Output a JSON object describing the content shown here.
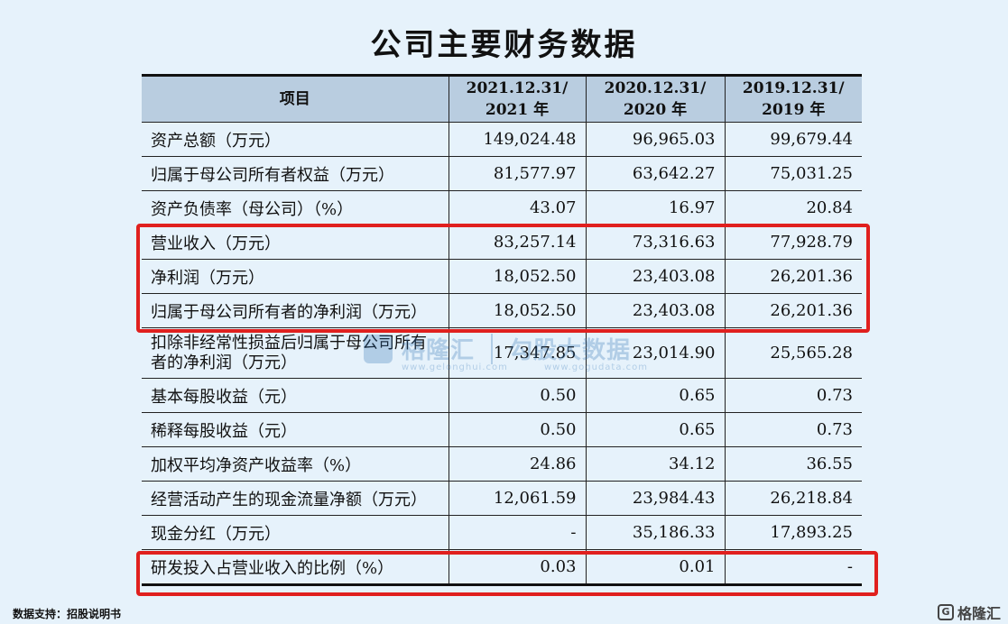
{
  "title": "公司主要财务数据",
  "table": {
    "headers": [
      "项目",
      "2021.12.31/\n2021 年",
      "2020.12.31/\n2020 年",
      "2019.12.31/\n2019 年"
    ],
    "rows": [
      {
        "label": "资产总额（万元）",
        "values": [
          "149,024.48",
          "96,965.03",
          "99,679.44"
        ]
      },
      {
        "label": "归属于母公司所有者权益（万元）",
        "values": [
          "81,577.97",
          "63,642.27",
          "75,031.25"
        ]
      },
      {
        "label": "资产负债率（母公司）（%）",
        "values": [
          "43.07",
          "16.97",
          "20.84"
        ]
      },
      {
        "label": "营业收入（万元）",
        "values": [
          "83,257.14",
          "73,316.63",
          "77,928.79"
        ]
      },
      {
        "label": "净利润（万元）",
        "values": [
          "18,052.50",
          "23,403.08",
          "26,201.36"
        ]
      },
      {
        "label": "归属于母公司所有者的净利润（万元）",
        "values": [
          "18,052.50",
          "23,403.08",
          "26,201.36"
        ]
      },
      {
        "label": "扣除非经常性损益后归属于母公司所有者的净利润（万元）",
        "values": [
          "17,347.85",
          "23,014.90",
          "25,565.28"
        ]
      },
      {
        "label": "基本每股收益（元）",
        "values": [
          "0.50",
          "0.65",
          "0.73"
        ]
      },
      {
        "label": "稀释每股收益（元）",
        "values": [
          "0.50",
          "0.65",
          "0.73"
        ]
      },
      {
        "label": "加权平均净资产收益率（%）",
        "values": [
          "24.86",
          "34.12",
          "36.55"
        ]
      },
      {
        "label": "经营活动产生的现金流量净额（万元）",
        "values": [
          "12,061.59",
          "23,984.43",
          "26,218.84"
        ]
      },
      {
        "label": "现金分红（万元）",
        "values": [
          "-",
          "35,186.33",
          "17,893.25"
        ]
      },
      {
        "label": "研发投入占营业收入的比例（%）",
        "values": [
          "0.03",
          "0.01",
          "-"
        ]
      }
    ]
  },
  "source": "数据支持：招股说明书",
  "watermark": {
    "brand": "格隆汇",
    "brand_url": "www.gelonghui.com",
    "data_brand": "勾股大数据",
    "data_url": "www.gogudata.com"
  },
  "logo": {
    "text": "格隆汇",
    "icon": "G"
  },
  "colors": {
    "highlight": "#e0201e",
    "header_bg": "#b9cde0",
    "page_bg": "#e6f2fb"
  }
}
